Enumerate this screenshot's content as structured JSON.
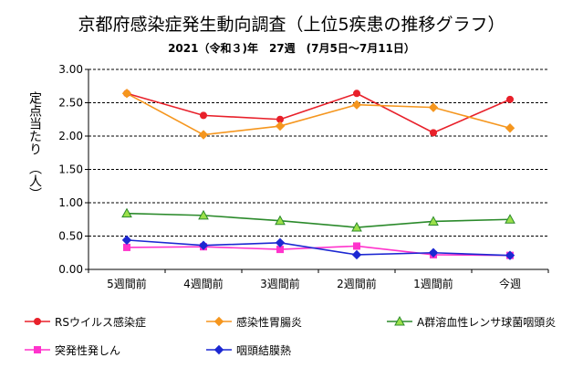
{
  "chart_data": {
    "type": "line",
    "title": "京都府感染症発生動向調査（上位5疾患の推移グラフ）",
    "subtitle": "2021（令和３)年　27週　(7月5日～7月11日）",
    "ylabel": "定点当たり　（人）",
    "xlabel": "",
    "categories": [
      "5週間前",
      "4週間前",
      "3週間前",
      "2週間前",
      "1週間前",
      "今週"
    ],
    "ylim": [
      0,
      3.0
    ],
    "yticks": [
      "0.00",
      "0.50",
      "1.00",
      "1.50",
      "2.00",
      "2.50",
      "3.00"
    ],
    "grid": true,
    "legend_position": "bottom",
    "series": [
      {
        "name": "RSウイルス感染症",
        "color": "#e8202a",
        "marker": "circle",
        "values": [
          2.64,
          2.31,
          2.25,
          2.64,
          2.05,
          2.55
        ]
      },
      {
        "name": "感染性胃腸炎",
        "color": "#f5961e",
        "marker": "diamond",
        "values": [
          2.64,
          2.02,
          2.15,
          2.47,
          2.43,
          2.12
        ]
      },
      {
        "name": "A群溶血性レンサ球菌咽頭炎",
        "color": "#2b8a2b",
        "marker": "triangle",
        "values": [
          0.84,
          0.81,
          0.73,
          0.63,
          0.72,
          0.75
        ]
      },
      {
        "name": "突発性発しん",
        "color": "#ff33cc",
        "marker": "square",
        "values": [
          0.33,
          0.34,
          0.3,
          0.35,
          0.22,
          0.21
        ]
      },
      {
        "name": "咽頭結膜熱",
        "color": "#1c28d2",
        "marker": "diamond",
        "values": [
          0.44,
          0.36,
          0.4,
          0.22,
          0.25,
          0.21
        ]
      }
    ]
  }
}
